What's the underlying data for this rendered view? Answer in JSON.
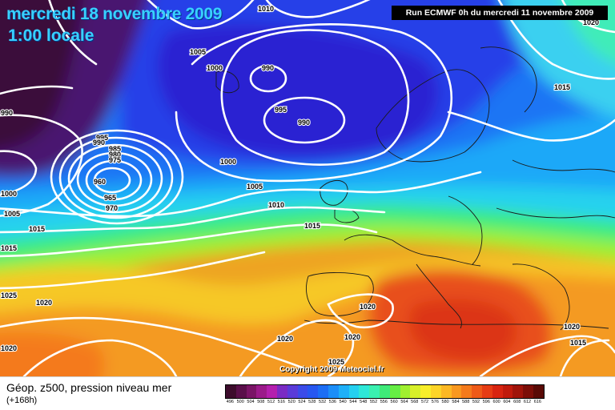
{
  "header": {
    "date_title": "mercredi 18 novembre 2009",
    "time_title": "1:00 locale",
    "run_info": "Run ECMWF 0h du mercredi 11 novembre 2009"
  },
  "copyright": "Copyright 2009 Meteociel.fr",
  "footer": {
    "field_title": "Géop. z500, pression niveau mer",
    "forecast_range": "(+168h)"
  },
  "legend": {
    "values": [
      "496",
      "500",
      "504",
      "508",
      "512",
      "516",
      "520",
      "524",
      "528",
      "532",
      "536",
      "540",
      "544",
      "548",
      "552",
      "556",
      "560",
      "564",
      "568",
      "572",
      "576",
      "580",
      "584",
      "588",
      "592",
      "596",
      "600",
      "604",
      "608",
      "612",
      "616"
    ],
    "colors": [
      "#3d0c2c",
      "#5a0f4a",
      "#7a1466",
      "#9b1a8a",
      "#b41fae",
      "#7a2bc4",
      "#5a3bd8",
      "#3b4be8",
      "#2757f0",
      "#1c6ef5",
      "#1c8ef8",
      "#1fb0f8",
      "#25d0f0",
      "#2ee8d8",
      "#3af0b0",
      "#3fea78",
      "#66ee44",
      "#a0f030",
      "#d8f02a",
      "#f8ee2a",
      "#fcd428",
      "#fcb824",
      "#f89820",
      "#f47a1c",
      "#ee5a18",
      "#e63c14",
      "#d82410",
      "#c01a0c",
      "#a0140a",
      "#7c0e08",
      "#5a0a06"
    ]
  },
  "isobar_labels": [
    {
      "text": "1010"
    },
    {
      "text": "1005"
    },
    {
      "text": "1000"
    },
    {
      "text": "990"
    },
    {
      "text": "995"
    },
    {
      "text": "990"
    },
    {
      "text": "990"
    },
    {
      "text": "995"
    },
    {
      "text": "985"
    },
    {
      "text": "980"
    },
    {
      "text": "975"
    },
    {
      "text": "990"
    },
    {
      "text": "960"
    },
    {
      "text": "965"
    },
    {
      "text": "970"
    },
    {
      "text": "1000"
    },
    {
      "text": "1000"
    },
    {
      "text": "1005"
    },
    {
      "text": "1010"
    },
    {
      "text": "1005"
    },
    {
      "text": "1015"
    },
    {
      "text": "1015"
    },
    {
      "text": "1015"
    },
    {
      "text": "1025"
    },
    {
      "text": "1020"
    },
    {
      "text": "1020"
    },
    {
      "text": "1020"
    },
    {
      "text": "1020"
    },
    {
      "text": "1020"
    },
    {
      "text": "1025"
    },
    {
      "text": "1020"
    },
    {
      "text": "1015"
    },
    {
      "text": "1015"
    },
    {
      "text": "1020"
    }
  ]
}
